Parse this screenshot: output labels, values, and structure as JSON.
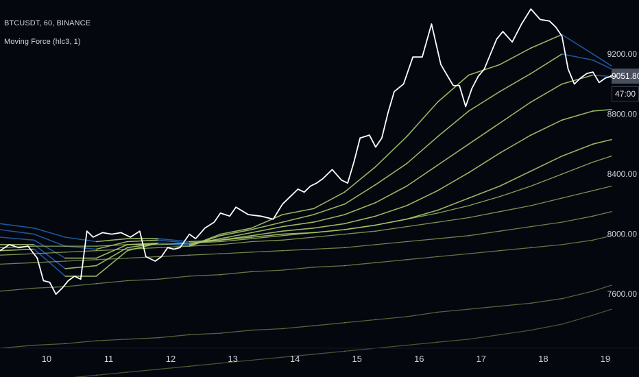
{
  "header": {
    "symbol_line": "BTCUSDT, 60, BINANCE",
    "indicator_line": "Moving Force (hlc3, 1)"
  },
  "price_scale": {
    "last_price": "9051.80",
    "countdown": "47:00"
  },
  "colors": {
    "background": "#05070f",
    "price_line": "#ffffff",
    "rising_ma": "#a7c96a",
    "falling_ma": "#1f5fa8",
    "axis_text": "#cfd2da"
  },
  "chart_data": {
    "type": "line",
    "title": "",
    "xlabel": "",
    "ylabel": "",
    "ylim": [
      7240,
      9560
    ],
    "xlim": [
      9.25,
      19.1
    ],
    "y_ticks": [
      {
        "value": 7600,
        "label": "7600.00"
      },
      {
        "value": 8000,
        "label": "8000.00"
      },
      {
        "value": 8400,
        "label": "8400.00"
      },
      {
        "value": 8800,
        "label": "8800.00"
      },
      {
        "value": 9200,
        "label": "9200.00"
      }
    ],
    "x_ticks": [
      {
        "value": 10,
        "label": "10"
      },
      {
        "value": 11,
        "label": "11"
      },
      {
        "value": 12,
        "label": "12"
      },
      {
        "value": 13,
        "label": "13"
      },
      {
        "value": 14,
        "label": "14"
      },
      {
        "value": 15,
        "label": "15"
      },
      {
        "value": 16,
        "label": "16"
      },
      {
        "value": 17,
        "label": "17"
      },
      {
        "value": 18,
        "label": "18"
      },
      {
        "value": 19,
        "label": "19"
      }
    ],
    "price": {
      "x": [
        9.25,
        9.4,
        9.55,
        9.7,
        9.85,
        9.95,
        10.05,
        10.15,
        10.25,
        10.35,
        10.45,
        10.55,
        10.65,
        10.75,
        10.9,
        11.05,
        11.2,
        11.35,
        11.5,
        11.6,
        11.75,
        11.85,
        11.95,
        12.05,
        12.15,
        12.3,
        12.4,
        12.55,
        12.7,
        12.8,
        12.95,
        13.05,
        13.25,
        13.45,
        13.65,
        13.8,
        13.95,
        14.05,
        14.15,
        14.25,
        14.35,
        14.45,
        14.6,
        14.75,
        14.85,
        14.95,
        15.05,
        15.2,
        15.3,
        15.4,
        15.5,
        15.6,
        15.75,
        15.9,
        16.05,
        16.2,
        16.35,
        16.45,
        16.55,
        16.65,
        16.75,
        16.85,
        16.95,
        17.05,
        17.15,
        17.25,
        17.35,
        17.5,
        17.65,
        17.8,
        17.95,
        18.1,
        18.2,
        18.3,
        18.4,
        18.5,
        18.6,
        18.7,
        18.8,
        18.9,
        19.0,
        19.1
      ],
      "values": [
        7890,
        7930,
        7910,
        7920,
        7840,
        7690,
        7680,
        7600,
        7640,
        7690,
        7720,
        7700,
        8020,
        7980,
        8010,
        8000,
        8010,
        7980,
        8020,
        7850,
        7820,
        7850,
        7910,
        7900,
        7910,
        8000,
        7970,
        8040,
        8080,
        8140,
        8120,
        8180,
        8130,
        8120,
        8100,
        8200,
        8260,
        8300,
        8280,
        8320,
        8340,
        8370,
        8430,
        8360,
        8340,
        8480,
        8640,
        8660,
        8580,
        8640,
        8810,
        8950,
        9000,
        9180,
        9180,
        9400,
        9130,
        9060,
        8990,
        8990,
        8850,
        8970,
        9050,
        9100,
        9200,
        9300,
        9350,
        9280,
        9400,
        9500,
        9430,
        9420,
        9380,
        9320,
        9100,
        9000,
        9040,
        9070,
        9080,
        9010,
        9040,
        9051.8
      ]
    },
    "moving_averages": {
      "x": [
        9.25,
        9.8,
        10.3,
        10.8,
        11.3,
        11.8,
        12.3,
        12.8,
        13.3,
        13.8,
        14.3,
        14.8,
        15.3,
        15.8,
        16.3,
        16.8,
        17.3,
        17.8,
        18.3,
        18.8,
        19.1
      ],
      "series": [
        {
          "values": [
            7890,
            7900,
            7720,
            7720,
            7890,
            7940,
            7920,
            8000,
            8040,
            8130,
            8170,
            8280,
            8450,
            8650,
            8880,
            9060,
            9130,
            9240,
            9330,
            9200,
            9120
          ]
        },
        {
          "values": [
            7930,
            7930,
            7770,
            7790,
            7910,
            7940,
            7920,
            7990,
            8030,
            8080,
            8130,
            8200,
            8330,
            8470,
            8650,
            8820,
            8950,
            9070,
            9200,
            9160,
            9100
          ]
        },
        {
          "values": [
            7980,
            7960,
            7840,
            7840,
            7930,
            7940,
            7930,
            7970,
            8010,
            8050,
            8080,
            8130,
            8210,
            8320,
            8460,
            8600,
            8740,
            8880,
            9000,
            9060,
            9050
          ]
        },
        {
          "values": [
            8030,
            8000,
            7920,
            7900,
            7950,
            7960,
            7940,
            7960,
            7990,
            8020,
            8040,
            8070,
            8120,
            8190,
            8290,
            8410,
            8540,
            8660,
            8760,
            8820,
            8830
          ]
        },
        {
          "values": [
            8070,
            8040,
            7980,
            7950,
            7970,
            7970,
            7950,
            7960,
            7980,
            8000,
            8010,
            8030,
            8060,
            8100,
            8160,
            8240,
            8320,
            8420,
            8520,
            8600,
            8630
          ]
        },
        {
          "values": [
            7910,
            7920,
            7920,
            7920,
            7930,
            7930,
            7940,
            7950,
            7970,
            7990,
            8010,
            8030,
            8060,
            8100,
            8140,
            8190,
            8250,
            8320,
            8400,
            8480,
            8520
          ]
        },
        {
          "values": [
            7860,
            7870,
            7880,
            7890,
            7900,
            7910,
            7920,
            7930,
            7950,
            7960,
            7980,
            8000,
            8020,
            8050,
            8080,
            8110,
            8150,
            8190,
            8240,
            8290,
            8320
          ]
        },
        {
          "values": [
            7800,
            7810,
            7820,
            7830,
            7840,
            7850,
            7860,
            7870,
            7880,
            7890,
            7900,
            7910,
            7930,
            7950,
            7970,
            7990,
            8020,
            8050,
            8080,
            8120,
            8150
          ]
        },
        {
          "values": [
            7620,
            7640,
            7650,
            7670,
            7690,
            7700,
            7720,
            7730,
            7750,
            7760,
            7780,
            7790,
            7810,
            7830,
            7850,
            7870,
            7890,
            7910,
            7930,
            7960,
            7990
          ]
        },
        {
          "values": [
            7240,
            7260,
            7270,
            7290,
            7300,
            7310,
            7330,
            7340,
            7360,
            7370,
            7390,
            7410,
            7430,
            7450,
            7480,
            7500,
            7520,
            7540,
            7570,
            7620,
            7660
          ]
        },
        {
          "values": [
            7000,
            7020,
            7040,
            7060,
            7080,
            7100,
            7120,
            7140,
            7160,
            7180,
            7200,
            7220,
            7240,
            7260,
            7280,
            7300,
            7330,
            7360,
            7400,
            7460,
            7500
          ]
        }
      ]
    }
  }
}
